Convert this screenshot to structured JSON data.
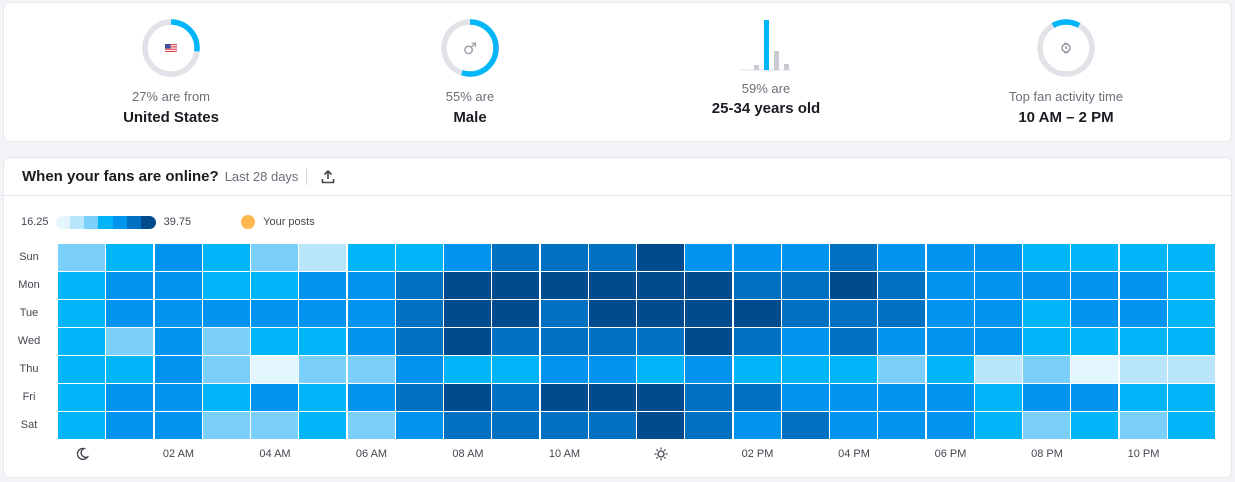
{
  "stats": [
    {
      "line1": "27% are from",
      "line2": "United States",
      "percent": 27,
      "icon": "us-flag-icon"
    },
    {
      "line1": "55% are",
      "line2": "Male",
      "percent": 55,
      "icon": "male-icon"
    },
    {
      "line1": "59% are",
      "line2": "25-34 years old",
      "icon": "age-bar-chart-icon"
    },
    {
      "line1": "Top fan activity time",
      "line2": "10 AM – 2 PM",
      "icon": "watch-icon"
    }
  ],
  "colors": {
    "accent": "#00b6f8",
    "track": "#e1e2e8",
    "posts": "#ffb84d"
  },
  "heatmap": {
    "title": "When your fans are online?",
    "period": "Last 28 days",
    "legend_min": "16.25",
    "legend_max": "39.75",
    "posts_label": "Your posts",
    "scale": [
      "#e3f6fd",
      "#b9e6fa",
      "#7ad0fb",
      "#00b6f8",
      "#0094ef",
      "#0070c0",
      "#004a8e"
    ],
    "days": [
      "Sun",
      "Mon",
      "Tue",
      "Wed",
      "Thu",
      "Fri",
      "Sat"
    ],
    "x_labels": [
      "moon-icon",
      "",
      "02 AM",
      "",
      "04 AM",
      "",
      "06 AM",
      "",
      "08 AM",
      "",
      "10 AM",
      "",
      "sun-icon",
      "",
      "02 PM",
      "",
      "04 PM",
      "",
      "06 PM",
      "",
      "08 PM",
      "",
      "10 PM",
      ""
    ]
  },
  "chart_data": {
    "type": "heatmap",
    "x": [
      "00",
      "01",
      "02",
      "03",
      "04",
      "05",
      "06",
      "07",
      "08",
      "09",
      "10",
      "11",
      "12",
      "13",
      "14",
      "15",
      "16",
      "17",
      "18",
      "19",
      "20",
      "21",
      "22",
      "23"
    ],
    "y": [
      "Sun",
      "Mon",
      "Tue",
      "Wed",
      "Thu",
      "Fri",
      "Sat"
    ],
    "range": [
      16.25,
      39.75
    ],
    "values": [
      [
        24,
        28,
        31,
        28,
        24,
        21,
        28,
        28,
        31,
        35,
        35,
        35,
        38,
        31,
        31,
        31,
        35,
        31,
        31,
        31,
        28,
        28,
        28,
        28
      ],
      [
        28,
        31,
        31,
        28,
        28,
        31,
        31,
        35,
        38,
        38,
        38,
        38,
        38,
        38,
        35,
        35,
        38,
        35,
        31,
        31,
        31,
        31,
        31,
        28
      ],
      [
        28,
        31,
        31,
        31,
        31,
        31,
        31,
        35,
        38,
        38,
        35,
        38,
        38,
        38,
        38,
        35,
        35,
        35,
        31,
        31,
        28,
        31,
        31,
        28
      ],
      [
        28,
        24,
        31,
        24,
        28,
        28,
        31,
        35,
        38,
        35,
        35,
        35,
        35,
        38,
        35,
        31,
        35,
        31,
        31,
        31,
        28,
        28,
        28,
        28
      ],
      [
        28,
        28,
        31,
        24,
        18,
        24,
        24,
        31,
        28,
        28,
        31,
        31,
        28,
        31,
        28,
        28,
        28,
        24,
        28,
        21,
        24,
        18,
        21,
        21
      ],
      [
        28,
        31,
        31,
        28,
        31,
        28,
        31,
        35,
        38,
        35,
        38,
        38,
        38,
        35,
        35,
        31,
        31,
        31,
        31,
        28,
        31,
        31,
        28,
        28
      ],
      [
        28,
        31,
        31,
        24,
        24,
        28,
        24,
        31,
        35,
        35,
        35,
        35,
        38,
        35,
        31,
        35,
        31,
        31,
        31,
        28,
        24,
        28,
        24,
        28
      ]
    ]
  }
}
